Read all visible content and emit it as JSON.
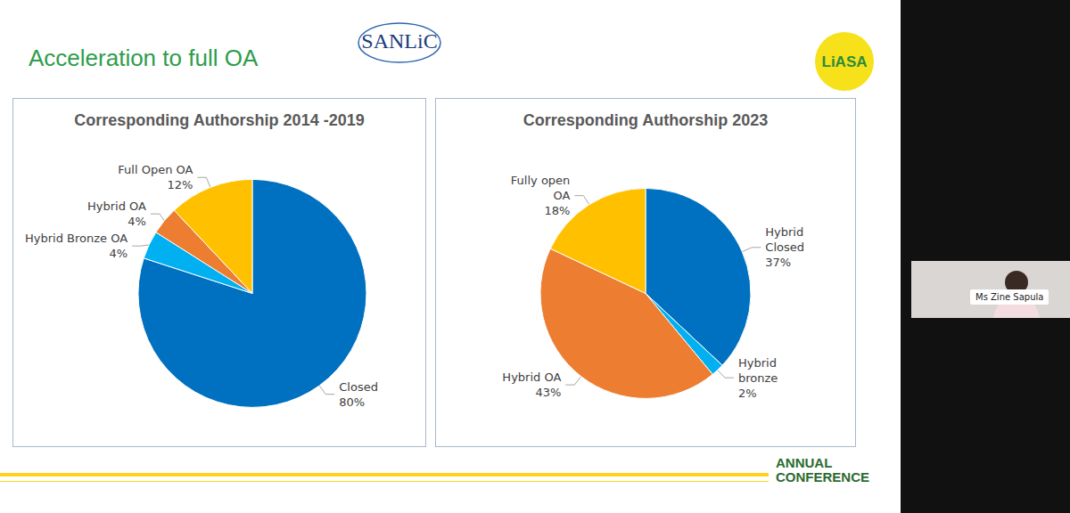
{
  "slide": {
    "title": "Acceleration to full OA",
    "logos": [
      "SANLiC",
      "LiASA"
    ],
    "footer": "ANNUAL CONFERENCE",
    "speaker": "Ms Zine Sapula"
  },
  "chart_data": [
    {
      "type": "pie",
      "title": "Corresponding Authorship 2014 -2019",
      "categories": [
        "Closed",
        "Hybrid Bronze OA",
        "Hybrid OA",
        "Full Open OA"
      ],
      "values": [
        80,
        4,
        4,
        12
      ],
      "value_labels": [
        "80%",
        "4%",
        "4%",
        "12%"
      ],
      "colors": [
        "#0070c0",
        "#00b0f0",
        "#ed7d31",
        "#ffc000"
      ],
      "data_labels": true
    },
    {
      "type": "pie",
      "title": "Corresponding Authorship 2023",
      "categories": [
        "Hybrid Closed",
        "Hybrid bronze",
        "Hybrid OA",
        "Fully open OA"
      ],
      "values": [
        37,
        2,
        43,
        18
      ],
      "value_labels": [
        "37%",
        "2%",
        "43%",
        "18%"
      ],
      "colors": [
        "#0070c0",
        "#00b0f0",
        "#ed7d31",
        "#ffc000"
      ],
      "data_labels": true
    }
  ]
}
